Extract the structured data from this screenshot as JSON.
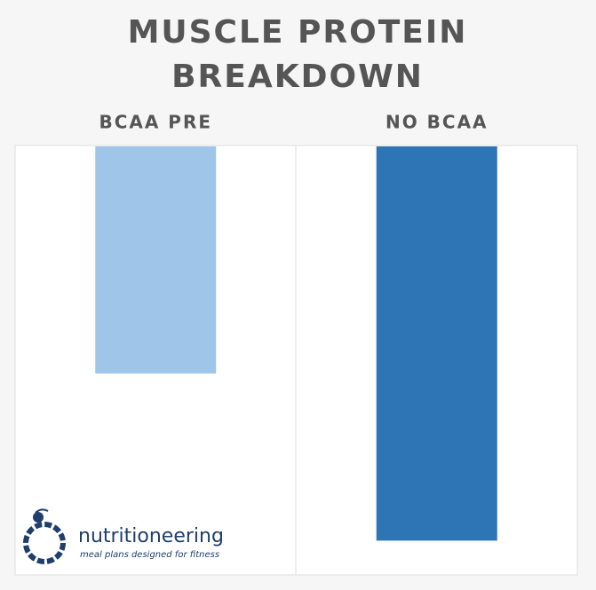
{
  "chart_data": {
    "type": "bar",
    "title": "MUSCLE PROTEIN BREAKDOWN",
    "categories": [
      "BCAA PRE",
      "NO BCAA"
    ],
    "values": [
      53,
      92
    ],
    "colors": [
      "#9fc5e8",
      "#2e75b6"
    ],
    "ylim": [
      0,
      100
    ],
    "inverted": true,
    "grid": false
  },
  "logo": {
    "name": "nutritioneering",
    "tagline": "meal plans designed for fitness"
  }
}
